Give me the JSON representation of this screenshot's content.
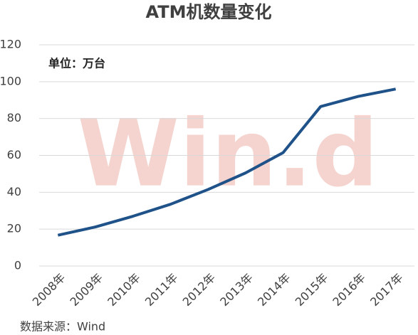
{
  "chart_data": {
    "type": "line",
    "title": "ATM机数量变化",
    "annotation": "单位：万台",
    "source": "数据来源：Wind",
    "watermark": "Win.d",
    "categories": [
      "2008年",
      "2009年",
      "2010年",
      "2011年",
      "2012年",
      "2013年",
      "2014年",
      "2015年",
      "2016年",
      "2017年"
    ],
    "series": [
      {
        "name": "ATM机数量",
        "color": "#1f5289",
        "values": [
          16.7,
          21.2,
          27,
          33.5,
          41.5,
          50.5,
          61.5,
          86.5,
          92,
          96
        ]
      }
    ],
    "ylim": [
      0,
      120
    ],
    "yticks": [
      0,
      20,
      40,
      60,
      80,
      100,
      120
    ],
    "grid": true
  }
}
